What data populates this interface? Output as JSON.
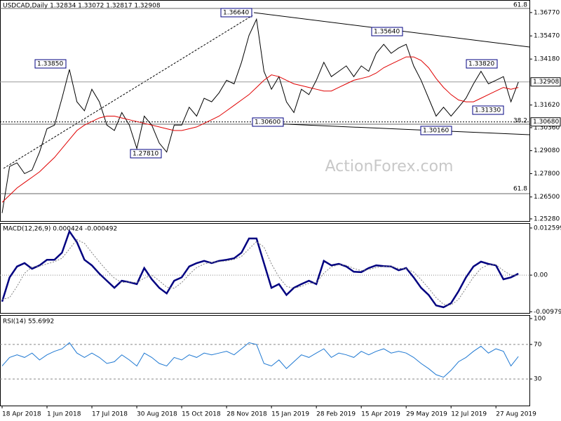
{
  "chart_data": [
    {
      "type": "line",
      "title": "USDCAD,Daily 1.32834 1.33072 1.32817 1.32908",
      "ylim": [
        1.2516,
        1.37
      ],
      "yticks": [
        {
          "value": 1.3677,
          "label": "1.36770"
        },
        {
          "value": 1.3547,
          "label": "1.35470"
        },
        {
          "value": 1.3418,
          "label": "1.34180"
        },
        {
          "value": 1.3162,
          "label": "1.31620"
        },
        {
          "value": 1.3036,
          "label": "1.30360"
        },
        {
          "value": 1.2908,
          "label": "1.29080"
        },
        {
          "value": 1.278,
          "label": "1.27800"
        },
        {
          "value": 1.265,
          "label": "1.26500"
        },
        {
          "value": 1.2528,
          "label": "1.25280"
        }
      ],
      "level_tags": [
        {
          "value": 1.32908,
          "label": "1.32908"
        },
        {
          "value": 1.3068,
          "label": "1.30680"
        }
      ],
      "annotations": [
        "1.36640",
        "1.35640",
        "1.33850",
        "1.33820",
        "1.31330",
        "1.30600",
        "1.30160",
        "1.27810"
      ],
      "fib_labels": [
        "61.8",
        "38.2",
        "61.8"
      ],
      "watermark": "ActionForex.com",
      "series": [
        {
          "name": "Price",
          "color": "#000000",
          "values": [
            1.256,
            1.282,
            1.284,
            1.278,
            1.28,
            1.29,
            1.303,
            1.305,
            1.32,
            1.336,
            1.318,
            1.313,
            1.325,
            1.318,
            1.305,
            1.302,
            1.312,
            1.305,
            1.292,
            1.31,
            1.305,
            1.295,
            1.29,
            1.305,
            1.305,
            1.315,
            1.31,
            1.32,
            1.318,
            1.323,
            1.33,
            1.328,
            1.34,
            1.355,
            1.364,
            1.335,
            1.325,
            1.332,
            1.318,
            1.312,
            1.325,
            1.322,
            1.33,
            1.34,
            1.332,
            1.335,
            1.338,
            1.332,
            1.338,
            1.335,
            1.345,
            1.35,
            1.345,
            1.348,
            1.35,
            1.338,
            1.33,
            1.32,
            1.31,
            1.315,
            1.31,
            1.315,
            1.32,
            1.328,
            1.335,
            1.328,
            1.33,
            1.332,
            1.318,
            1.329
          ]
        },
        {
          "name": "MA",
          "color": "#e00000",
          "values": [
            1.262,
            1.266,
            1.27,
            1.273,
            1.276,
            1.279,
            1.283,
            1.287,
            1.292,
            1.297,
            1.302,
            1.305,
            1.307,
            1.309,
            1.31,
            1.31,
            1.309,
            1.308,
            1.307,
            1.306,
            1.305,
            1.304,
            1.303,
            1.302,
            1.302,
            1.303,
            1.304,
            1.306,
            1.308,
            1.31,
            1.313,
            1.316,
            1.319,
            1.322,
            1.326,
            1.33,
            1.333,
            1.332,
            1.33,
            1.328,
            1.327,
            1.326,
            1.325,
            1.324,
            1.324,
            1.326,
            1.328,
            1.33,
            1.331,
            1.332,
            1.334,
            1.337,
            1.339,
            1.341,
            1.343,
            1.343,
            1.341,
            1.337,
            1.331,
            1.326,
            1.322,
            1.319,
            1.318,
            1.318,
            1.32,
            1.322,
            1.324,
            1.326,
            1.325,
            1.326
          ]
        }
      ]
    },
    {
      "type": "line",
      "title": "MACD(12,26,9) 0.000424 -0.000492",
      "ylim": [
        -0.0103,
        0.0139
      ],
      "yticks": [
        0.012599,
        {
          "value": 0,
          "label": "0.00"
        },
        -0.00979
      ],
      "series": [
        {
          "name": "MACD",
          "color": "#000080",
          "values": [
            -0.0071,
            -0.0006,
            0.0023,
            0.0032,
            0.0017,
            0.0026,
            0.0041,
            0.0041,
            0.006,
            0.0117,
            0.0088,
            0.0041,
            0.0026,
            0.0004,
            -0.0015,
            -0.0034,
            -0.0015,
            -0.0019,
            -0.0024,
            0.0019,
            -0.0011,
            -0.0034,
            -0.0049,
            -0.0015,
            -0.0006,
            0.0023,
            0.0032,
            0.0038,
            0.0032,
            0.0038,
            0.0041,
            0.0045,
            0.006,
            0.0098,
            0.0098,
            0.0032,
            -0.0034,
            -0.0024,
            -0.0053,
            -0.0034,
            -0.0024,
            -0.0015,
            -0.0024,
            0.0038,
            0.0026,
            0.003,
            0.0023,
            0.0009,
            0.0008,
            0.0019,
            0.0026,
            0.0024,
            0.0023,
            0.0013,
            0.0019,
            -0.0006,
            -0.0034,
            -0.0053,
            -0.0081,
            -0.0086,
            -0.0075,
            -0.0043,
            -0.0006,
            0.0023,
            0.0036,
            0.003,
            0.0026,
            -0.0011,
            -0.0006,
            0.0004
          ]
        },
        {
          "name": "Signal",
          "color": "#808080",
          "values": [
            -0.0065,
            -0.006,
            -0.003,
            0.0005,
            0.0022,
            0.0024,
            0.003,
            0.0036,
            0.0045,
            0.007,
            0.0095,
            0.0085,
            0.006,
            0.0035,
            0.0012,
            -0.0008,
            -0.002,
            -0.0018,
            -0.002,
            -0.0008,
            0.0,
            -0.0015,
            -0.0032,
            -0.0035,
            -0.002,
            0.0002,
            0.002,
            0.003,
            0.0034,
            0.0036,
            0.0038,
            0.0042,
            0.005,
            0.007,
            0.009,
            0.0075,
            0.003,
            -0.0005,
            -0.003,
            -0.0035,
            -0.003,
            -0.0022,
            -0.002,
            0.0005,
            0.0022,
            0.0028,
            0.0026,
            0.0018,
            0.0012,
            0.0015,
            0.002,
            0.0023,
            0.0023,
            0.0018,
            0.0017,
            0.0008,
            -0.0012,
            -0.0035,
            -0.006,
            -0.0078,
            -0.008,
            -0.0065,
            -0.0035,
            -0.0005,
            0.0018,
            0.0028,
            0.0028,
            0.0012,
            0.0,
            0.0
          ]
        }
      ]
    },
    {
      "type": "line",
      "title": "RSI(14) 55.6992",
      "ylim": [
        0,
        100
      ],
      "yticks": [
        100,
        70,
        30
      ],
      "categories": [
        "18 Apr 2018",
        null,
        null,
        null,
        null,
        null,
        "1 Jun 2018",
        null,
        null,
        null,
        null,
        null,
        "17 Jul 2018",
        null,
        null,
        null,
        null,
        null,
        "30 Aug 2018",
        null,
        null,
        null,
        null,
        null,
        "15 Oct 2018",
        null,
        null,
        null,
        null,
        null,
        "28 Nov 2018",
        null,
        null,
        null,
        null,
        null,
        "15 Jan 2019",
        null,
        null,
        null,
        null,
        null,
        "28 Feb 2019",
        null,
        null,
        null,
        null,
        null,
        "15 Apr 2019",
        null,
        null,
        null,
        null,
        null,
        "29 May 2019",
        null,
        null,
        null,
        null,
        null,
        "12 Jul 2019",
        null,
        null,
        null,
        null,
        null,
        "27 Aug 2019",
        null,
        null,
        null
      ],
      "series": [
        {
          "name": "RSI",
          "color": "#1e78d2",
          "values": [
            45,
            55,
            58,
            55,
            60,
            52,
            58,
            62,
            65,
            72,
            60,
            55,
            60,
            55,
            48,
            50,
            58,
            52,
            45,
            60,
            55,
            48,
            45,
            55,
            52,
            58,
            55,
            60,
            58,
            60,
            62,
            58,
            65,
            72,
            70,
            48,
            45,
            52,
            42,
            50,
            58,
            55,
            60,
            65,
            55,
            60,
            58,
            55,
            62,
            58,
            62,
            65,
            60,
            62,
            60,
            55,
            48,
            42,
            35,
            32,
            40,
            50,
            55,
            62,
            68,
            60,
            65,
            62,
            45,
            56
          ]
        }
      ]
    }
  ]
}
